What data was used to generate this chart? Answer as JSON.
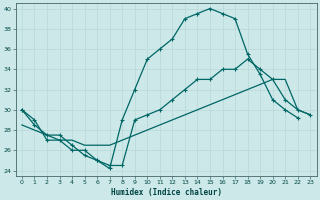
{
  "xlabel": "Humidex (Indice chaleur)",
  "xlim": [
    -0.5,
    23.5
  ],
  "ylim": [
    23.5,
    40.5
  ],
  "xticks": [
    0,
    1,
    2,
    3,
    4,
    5,
    6,
    7,
    8,
    9,
    10,
    11,
    12,
    13,
    14,
    15,
    16,
    17,
    18,
    19,
    20,
    21,
    22,
    23
  ],
  "yticks": [
    24,
    26,
    28,
    30,
    32,
    34,
    36,
    38,
    40
  ],
  "bg_color": "#cce8e8",
  "grid_color": "#b8d8d8",
  "line_color": "#006666",
  "line1_x": [
    0,
    1,
    2,
    3,
    4,
    5,
    6,
    7,
    8,
    9,
    10,
    11,
    12,
    13,
    14,
    15,
    16,
    17,
    18,
    19,
    20,
    21,
    22,
    23
  ],
  "line1_y": [
    30,
    29,
    27,
    27,
    26,
    26,
    25,
    24.2,
    29,
    32,
    35,
    36,
    37,
    39,
    39.5,
    40,
    39.5,
    39,
    35.5,
    33.5,
    31,
    30,
    29.2,
    null
  ],
  "line2_x": [
    0,
    1,
    2,
    3,
    4,
    5,
    6,
    7,
    8,
    9,
    10,
    11,
    12,
    13,
    14,
    15,
    16,
    17,
    18,
    19,
    20,
    21,
    22,
    23
  ],
  "line2_y": [
    28.5,
    28,
    27.5,
    27,
    27,
    26.5,
    26.5,
    26.5,
    27,
    27.5,
    28,
    28.5,
    29,
    29.5,
    30,
    30.5,
    31,
    31.5,
    32,
    32.5,
    33,
    33,
    30,
    29.5
  ],
  "line3_x": [
    0,
    1,
    2,
    3,
    4,
    5,
    6,
    7,
    8,
    9,
    10,
    11,
    12,
    13,
    14,
    15,
    16,
    17,
    18,
    19,
    20,
    21,
    22,
    23
  ],
  "line3_y": [
    30,
    28.5,
    27.5,
    27.5,
    26.5,
    25.5,
    25,
    24.5,
    24.5,
    29,
    29.5,
    30,
    31,
    32,
    33,
    33,
    34,
    34,
    35,
    34,
    33,
    31,
    30,
    29.5
  ]
}
